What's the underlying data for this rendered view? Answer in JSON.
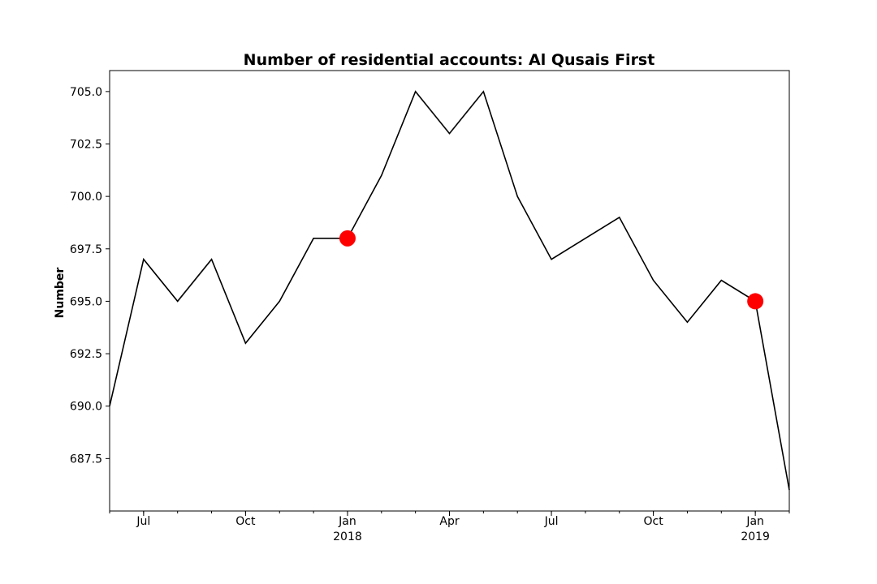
{
  "chart_data": {
    "type": "line",
    "title": "Number of residential accounts: Al Qusais First",
    "xlabel": "",
    "ylabel": "Number",
    "ylim": [
      685.0,
      706.0
    ],
    "yticks": [
      687.5,
      690.0,
      692.5,
      695.0,
      697.5,
      700.0,
      702.5,
      705.0
    ],
    "ytick_labels": [
      "687.5",
      "690.0",
      "692.5",
      "695.0",
      "697.5",
      "700.0",
      "702.5",
      "705.0"
    ],
    "xlim": [
      "2017-06",
      "2019-02"
    ],
    "x": [
      "2017-06",
      "2017-07",
      "2017-08",
      "2017-09",
      "2017-10",
      "2017-11",
      "2017-12",
      "2018-01",
      "2018-02",
      "2018-03",
      "2018-04",
      "2018-05",
      "2018-06",
      "2018-07",
      "2018-08",
      "2018-09",
      "2018-10",
      "2018-11",
      "2018-12",
      "2019-01",
      "2019-02"
    ],
    "series": [
      {
        "values": [
          690,
          697,
          695,
          697,
          693,
          695,
          698,
          698,
          701,
          705,
          703,
          705,
          700,
          697,
          698,
          699,
          696,
          694,
          696,
          695,
          686
        ],
        "color": "#000000"
      }
    ],
    "highlighted_points": [
      {
        "x": "2018-01",
        "y": 698,
        "color": "#ff0000"
      },
      {
        "x": "2019-01",
        "y": 695,
        "color": "#ff0000"
      }
    ],
    "xticks_major": [
      {
        "x": "2017-07",
        "label": "Jul",
        "sublabel": ""
      },
      {
        "x": "2017-10",
        "label": "Oct",
        "sublabel": ""
      },
      {
        "x": "2018-01",
        "label": "Jan",
        "sublabel": "2018"
      },
      {
        "x": "2018-04",
        "label": "Apr",
        "sublabel": ""
      },
      {
        "x": "2018-07",
        "label": "Jul",
        "sublabel": ""
      },
      {
        "x": "2018-10",
        "label": "Oct",
        "sublabel": ""
      },
      {
        "x": "2019-01",
        "label": "Jan",
        "sublabel": "2019"
      }
    ],
    "grid": false,
    "legend": "none"
  }
}
